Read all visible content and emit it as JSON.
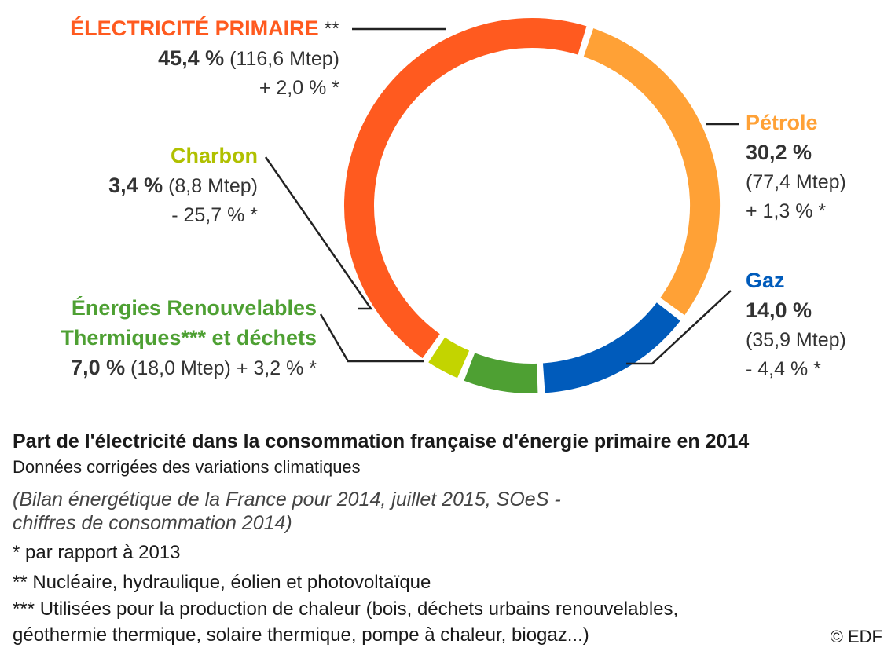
{
  "chart_data": {
    "type": "pie",
    "title": "Part de l'électricité dans la consommation française d'énergie primaire en 2014",
    "subtitle": "Données corrigées des variations climatiques",
    "slices": [
      {
        "name": "ÉLECTRICITÉ PRIMAIRE",
        "suffix": " **",
        "value": 45.4,
        "pct_label": "45,4 %",
        "mtep": "(116,6 Mtep)",
        "change": "+ 2,0 % *",
        "color": "#ff5a1f"
      },
      {
        "name": "Pétrole",
        "suffix": "",
        "value": 30.2,
        "pct_label": "30,2 %",
        "mtep": "(77,4 Mtep)",
        "change": "+ 1,3 % *",
        "color": "#ffa136"
      },
      {
        "name": "Gaz",
        "suffix": "",
        "value": 14.0,
        "pct_label": "14,0 %",
        "mtep": "(35,9 Mtep)",
        "change": "- 4,4 % *",
        "color": "#005bbb"
      },
      {
        "name": "Énergies Renouvelables Thermiques*** et déchets",
        "name_line1": "Énergies Renouvelables",
        "name_line2": "Thermiques*** et déchets",
        "suffix": "",
        "value": 7.0,
        "pct_label": "7,0 %",
        "mtep": "(18,0 Mtep)",
        "change": "+ 3,2 % *",
        "color": "#4ea033"
      },
      {
        "name": "Charbon",
        "suffix": "",
        "value": 3.4,
        "pct_label": "3,4 %",
        "mtep": "(8,8 Mtep)",
        "change": "- 25,7 % *",
        "color": "#c3d400"
      }
    ]
  },
  "source_line1": "(Bilan énergétique de la France pour 2014, juillet 2015, SOeS -",
  "source_line2": "chiffres de consommation 2014)",
  "notes": [
    "* par rapport à 2013",
    "** Nucléaire, hydraulique, éolien et photovoltaïque",
    "*** Utilisées pour la production de chaleur (bois, déchets urbains renouvelables,",
    "géothermie thermique, solaire thermique, pompe à chaleur, biogaz...)"
  ],
  "copyright": "© EDF",
  "leader_color": "#222222"
}
